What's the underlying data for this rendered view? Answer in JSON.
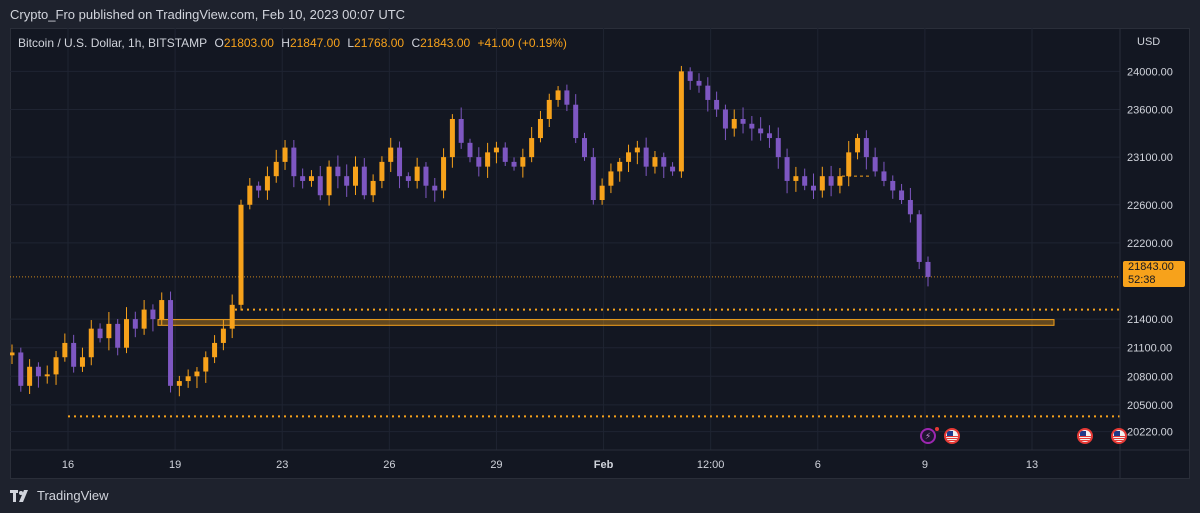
{
  "header": {
    "published": "Crypto_Fro published on TradingView.com, Feb 10, 2023 00:07 UTC"
  },
  "legend": {
    "symbol": "Bitcoin / U.S. Dollar, 1h, BITSTAMP",
    "o_label": "O",
    "o_value": "21803.00",
    "h_label": "H",
    "h_value": "21847.00",
    "l_label": "L",
    "l_value": "21768.00",
    "c_label": "C",
    "c_value": "21843.00",
    "change": "+41.00 (+0.19%)"
  },
  "axis": {
    "currency": "USD",
    "price_tag_value": "21843.00",
    "price_tag_countdown": "52:38"
  },
  "footer": {
    "brand": "TradingView"
  },
  "colors": {
    "background": "#131722",
    "candle_up": "#f7a21b",
    "candle_down": "#7e57c2",
    "level": "#f7a21b",
    "text": "#d1d4dc"
  },
  "chart_data": {
    "type": "line",
    "title": "Bitcoin / U.S. Dollar, 1h, BITSTAMP",
    "y_ticks": [
      24000,
      23600,
      23100,
      22600,
      22200,
      21400,
      21100,
      20800,
      20500,
      20220
    ],
    "x_ticks": [
      "16",
      "19",
      "23",
      "26",
      "29",
      "Feb",
      "12:00",
      "6",
      "9",
      "13"
    ],
    "ylim": [
      20100,
      24350
    ],
    "grid": true,
    "series": [
      {
        "values": [
          21050,
          20700,
          20900,
          20800,
          20820,
          21000,
          21150,
          20900,
          21000,
          21300,
          21200,
          21350,
          21100,
          21400,
          21300,
          21500,
          21400,
          21600,
          20700,
          20750,
          20800,
          20850,
          21000,
          21150,
          21300,
          21550,
          22600,
          22800,
          22750,
          22900,
          23050,
          23200,
          22900,
          22850,
          22900,
          22700,
          23000,
          22900,
          22800,
          23000,
          22700,
          22850,
          23050,
          23200,
          22900,
          22850,
          23000,
          22800,
          22750,
          23100,
          23500,
          23250,
          23100,
          23000,
          23150,
          23200,
          23050,
          23000,
          23100,
          23300,
          23500,
          23700,
          23800,
          23650,
          23300,
          23100,
          22650,
          22800,
          22950,
          23050,
          23150,
          23200,
          23000,
          23100,
          23000,
          22950,
          24000,
          23900,
          23850,
          23700,
          23600,
          23400,
          23500,
          23450,
          23400,
          23350,
          23300,
          23100,
          22850,
          22900,
          22800,
          22750,
          22900,
          22800,
          22900,
          23150,
          23300,
          23100,
          22950,
          22850,
          22750,
          22650,
          22500,
          22000,
          21843
        ]
      }
    ],
    "levels": [
      {
        "type": "horizontal",
        "value": 21500,
        "style": "dotted"
      },
      {
        "type": "horizontal",
        "value": 20380,
        "style": "dotted"
      },
      {
        "type": "zone",
        "from": 21335,
        "to": 21395
      },
      {
        "type": "horizontal",
        "value": 21843,
        "style": "last-price"
      },
      {
        "type": "horizontal",
        "value": 22900,
        "style": "short-dashed"
      }
    ]
  }
}
